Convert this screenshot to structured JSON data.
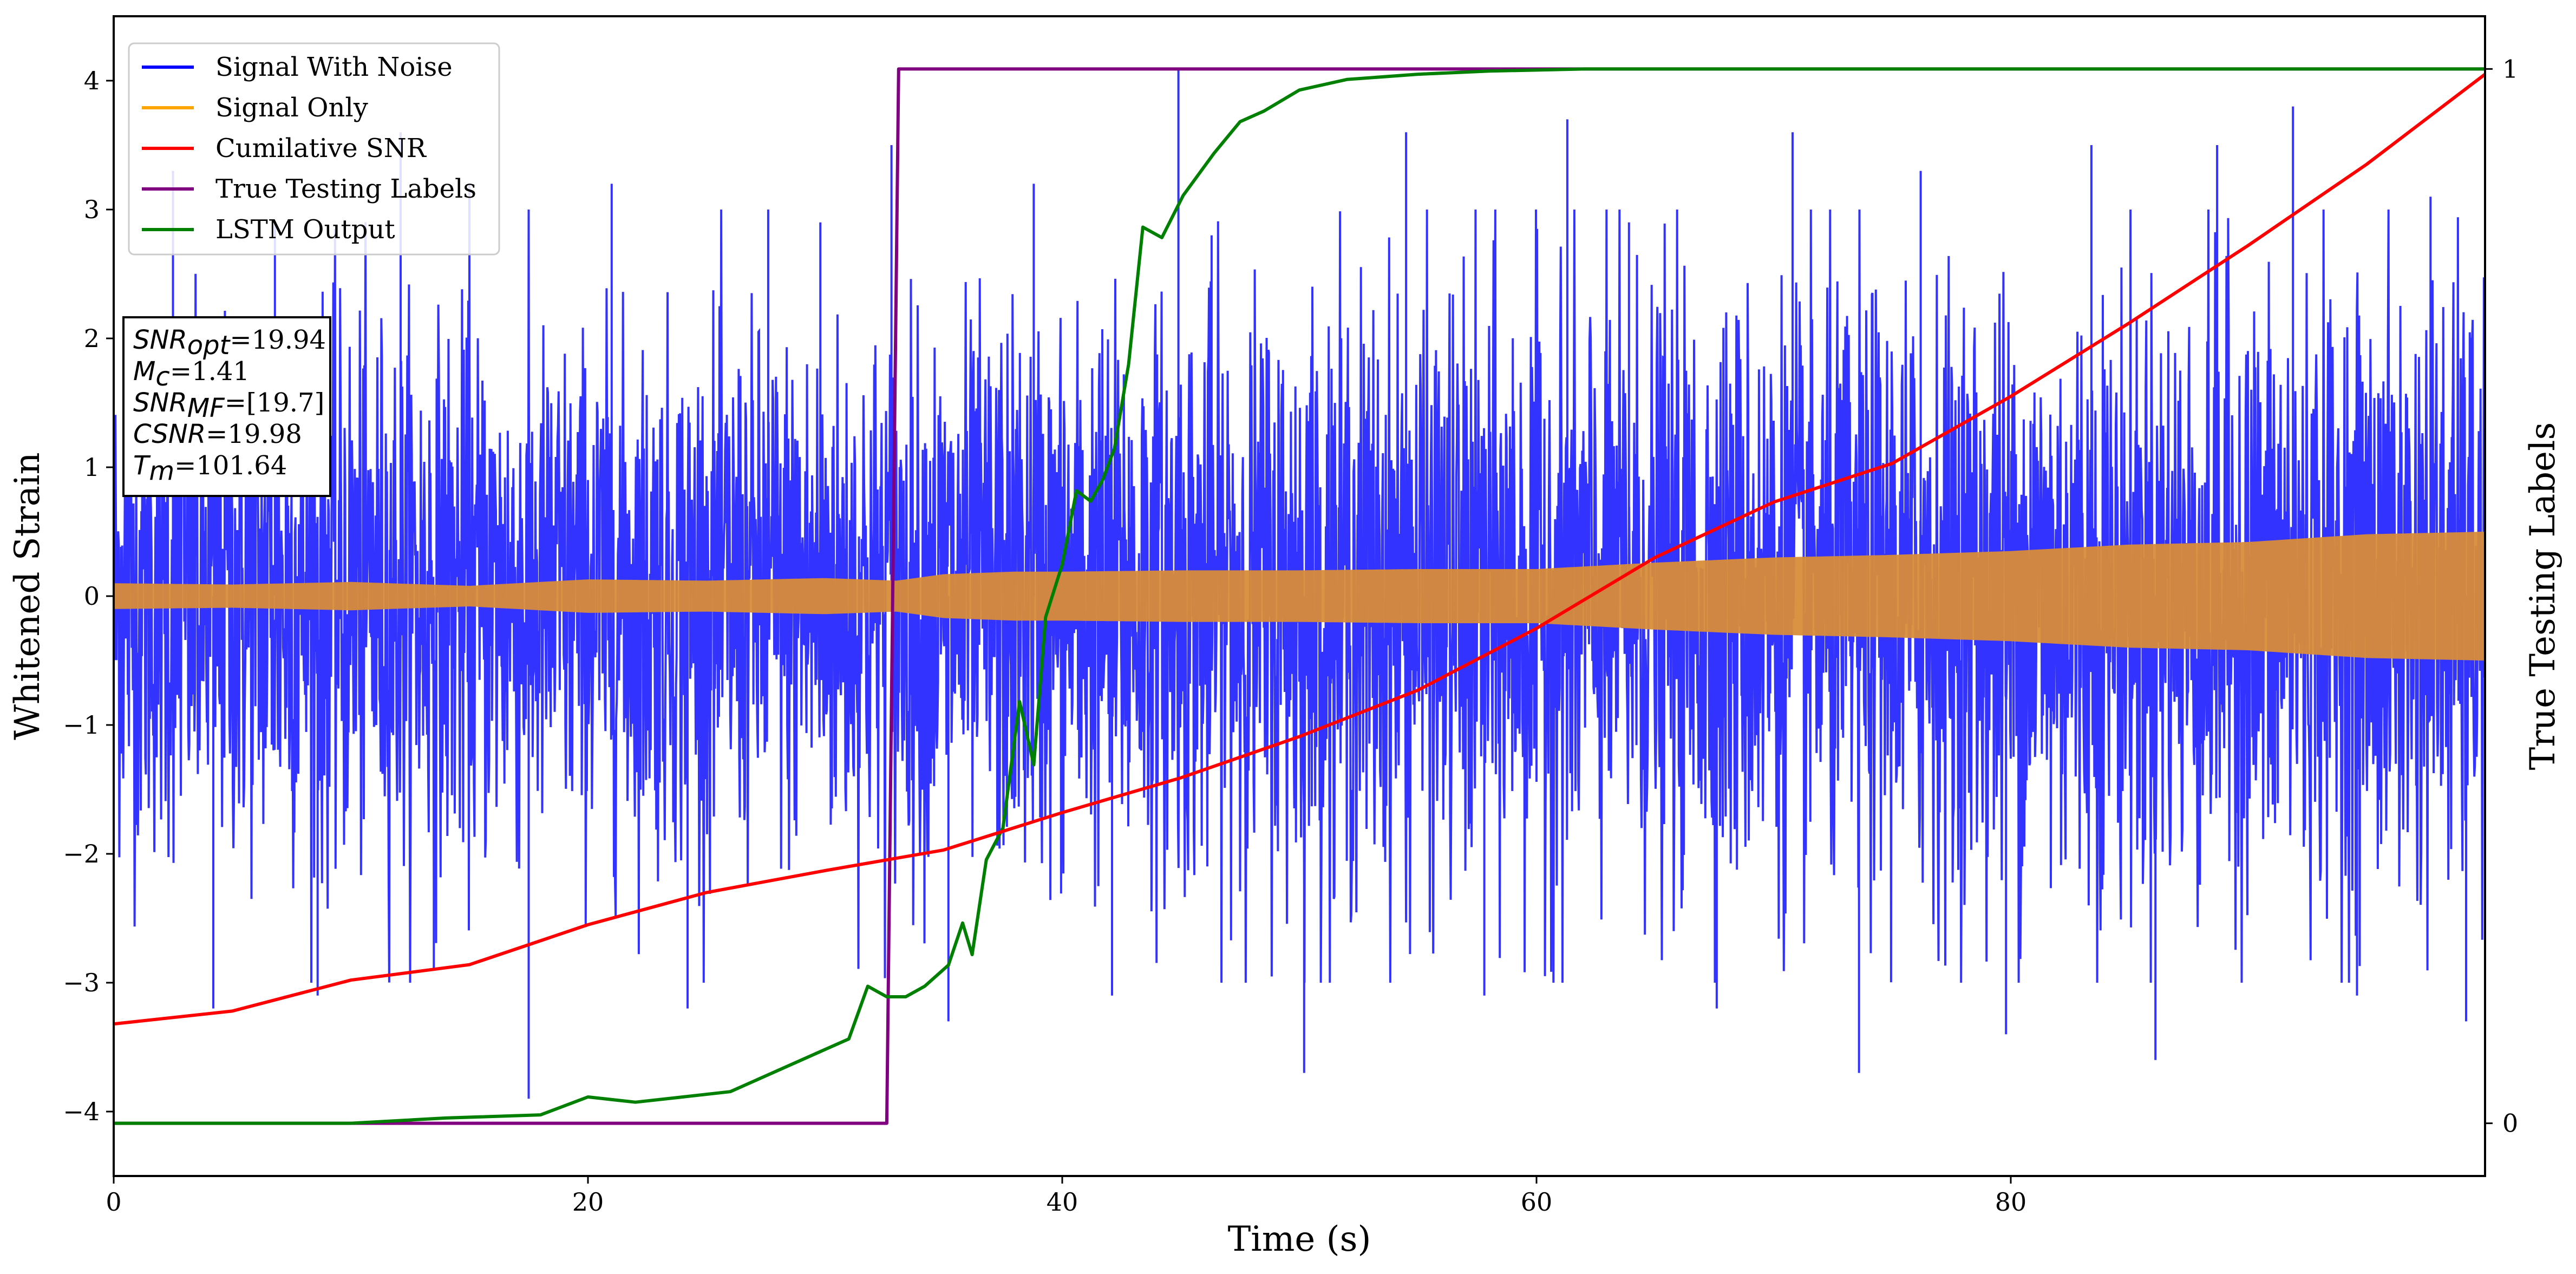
{
  "chart_data": {
    "type": "line",
    "title": "",
    "xlabel": "Time (s)",
    "ylabel": "Whitened Strain",
    "y2label": "True Testing Labels",
    "xlim": [
      0,
      100
    ],
    "ylim": [
      -4.5,
      4.5
    ],
    "y2lim": [
      -0.05,
      1.05
    ],
    "x_ticks": [
      0,
      20,
      40,
      60,
      80
    ],
    "y_ticks": [
      -4,
      -3,
      -2,
      -1,
      0,
      1,
      2,
      3,
      4
    ],
    "y2_ticks": [
      0,
      1
    ],
    "legend_position": "top-left",
    "grid": false,
    "series": [
      {
        "name": "Signal With Noise",
        "axis": "left",
        "color": "#0000ff",
        "style": "dense-noise",
        "description_values": {
          "typical_upper_envelope": [
            2.2,
            2.4,
            2.2,
            2.3,
            2.4,
            2.6,
            2.7,
            2.6,
            2.7,
            2.7,
            2.7
          ],
          "typical_lower_envelope": [
            -2.2,
            -2.3,
            -2.3,
            -2.2,
            -2.4,
            -2.4,
            -2.5,
            -2.4,
            -2.5,
            -2.5,
            -2.5
          ],
          "envelope_x": [
            0,
            10,
            20,
            30,
            40,
            50,
            60,
            70,
            80,
            90,
            100
          ],
          "spikes_x": [
            2.5,
            4.2,
            6.8,
            8.6,
            12.1,
            13.5,
            15.0,
            17.5,
            21.0,
            24.2,
            27.6,
            29.8,
            32.8,
            35.2,
            38.8,
            42.1,
            44.9,
            46.3,
            50.2,
            54.5,
            57.8,
            61.3,
            63.9,
            67.6,
            70.8,
            73.6,
            76.2,
            79.8,
            83.4,
            86.1,
            88.7,
            91.9,
            94.6,
            97.7,
            99.2
          ],
          "spikes_y": [
            3.3,
            -3.2,
            2.9,
            -3.1,
            3.6,
            -2.9,
            3.2,
            -3.9,
            3.2,
            -3.2,
            3.0,
            2.9,
            3.5,
            -3.3,
            3.2,
            -3.1,
            4.1,
            2.8,
            -3.7,
            3.6,
            -3.1,
            3.7,
            2.9,
            -3.2,
            3.6,
            -3.7,
            3.3,
            -3.4,
            3.5,
            -3.6,
            3.5,
            3.8,
            -3.1,
            3.1,
            -3.3
          ]
        }
      },
      {
        "name": "Signal Only",
        "axis": "left",
        "color": "#ffa500",
        "style": "band",
        "x": [
          0,
          5,
          10,
          15,
          20,
          25,
          30,
          33,
          35,
          38,
          40,
          45,
          50,
          55,
          60,
          65,
          70,
          75,
          80,
          85,
          90,
          95,
          100
        ],
        "amplitude": [
          0.1,
          0.09,
          0.11,
          0.08,
          0.13,
          0.12,
          0.14,
          0.12,
          0.17,
          0.19,
          0.19,
          0.2,
          0.2,
          0.21,
          0.21,
          0.26,
          0.3,
          0.32,
          0.35,
          0.4,
          0.42,
          0.48,
          0.5
        ]
      },
      {
        "name": "Cumilative SNR",
        "axis": "left",
        "color": "#ff0000",
        "x": [
          0,
          5,
          10,
          15,
          20,
          25,
          30,
          35,
          40,
          45,
          50,
          55,
          60,
          65,
          70,
          75,
          80,
          85,
          90,
          95,
          100
        ],
        "values": [
          -3.32,
          -3.22,
          -2.98,
          -2.86,
          -2.55,
          -2.3,
          -2.13,
          -1.97,
          -1.68,
          -1.41,
          -1.09,
          -0.73,
          -0.25,
          0.3,
          0.73,
          1.03,
          1.55,
          2.12,
          2.72,
          3.35,
          4.05
        ]
      },
      {
        "name": "True Testing Labels",
        "axis": "right",
        "color": "#800080",
        "x": [
          0,
          32.6,
          33.1,
          100
        ],
        "values": [
          0,
          0,
          1,
          1
        ]
      },
      {
        "name": "LSTM Output",
        "axis": "right",
        "color": "#008000",
        "x": [
          0,
          10,
          14,
          18,
          20,
          22,
          24,
          26,
          28,
          30,
          31,
          31.8,
          32.6,
          33.4,
          34.2,
          35.2,
          35.8,
          36.2,
          36.8,
          37.5,
          38.2,
          38.8,
          39.3,
          40,
          40.6,
          41.2,
          41.7,
          42.2,
          42.8,
          43.4,
          44.2,
          45.1,
          46.4,
          47.5,
          48.5,
          50,
          52,
          55,
          58,
          62,
          70,
          100
        ],
        "values": [
          0,
          0,
          0.005,
          0.008,
          0.025,
          0.02,
          0.025,
          0.03,
          0.05,
          0.07,
          0.08,
          0.13,
          0.12,
          0.12,
          0.13,
          0.15,
          0.19,
          0.16,
          0.25,
          0.28,
          0.4,
          0.34,
          0.48,
          0.53,
          0.6,
          0.59,
          0.61,
          0.64,
          0.72,
          0.85,
          0.84,
          0.88,
          0.92,
          0.95,
          0.96,
          0.98,
          0.99,
          0.995,
          0.998,
          1,
          1,
          1
        ]
      }
    ],
    "annotation_lines": [
      {
        "prefix": "SNR",
        "subscript": "opt",
        "value": "=19.94"
      },
      {
        "prefix": "M",
        "subscript": "c",
        "value": "=1.41"
      },
      {
        "prefix": "SNR",
        "subscript": "MF",
        "value": "=[19.7]"
      },
      {
        "prefix": "CSNR",
        "subscript": "",
        "value": "=19.98"
      },
      {
        "prefix": "T",
        "subscript": "m",
        "value": "=101.64"
      }
    ]
  }
}
